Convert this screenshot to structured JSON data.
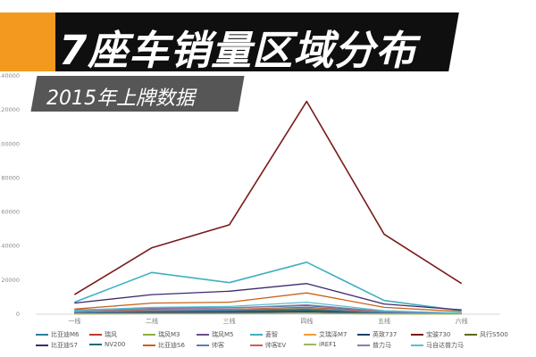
{
  "banner": {
    "title": "7座车销量区域分布",
    "subtitle": "2015年上牌数据"
  },
  "chart_data": {
    "type": "line",
    "categories": [
      "一线",
      "二线",
      "三线",
      "四线",
      "五线",
      "六线"
    ],
    "ylim": [
      0,
      140000
    ],
    "yticks": [
      0,
      20000,
      40000,
      60000,
      80000,
      100000,
      120000,
      140000
    ],
    "xlabel": "",
    "ylabel": "",
    "grid": false,
    "legend": "bottom",
    "series": [
      {
        "name": "比亚迪M6",
        "color": "#2e7d9a",
        "values": [
          2500,
          3500,
          3800,
          5000,
          1500,
          600
        ]
      },
      {
        "name": "瑞风",
        "color": "#c0392b",
        "values": [
          1500,
          2500,
          2800,
          4000,
          1200,
          400
        ]
      },
      {
        "name": "瑞风M3",
        "color": "#8fae3a",
        "values": [
          800,
          1500,
          1800,
          2500,
          800,
          300
        ]
      },
      {
        "name": "瑞风M5",
        "color": "#6b4b8c",
        "values": [
          600,
          1200,
          1400,
          2000,
          700,
          250
        ]
      },
      {
        "name": "菱智",
        "color": "#3fb0c0",
        "values": [
          7000,
          24500,
          18500,
          30500,
          8000,
          2000
        ]
      },
      {
        "name": "艾瑞泽M7",
        "color": "#f39c35",
        "values": [
          1200,
          2200,
          2600,
          3500,
          1100,
          400
        ]
      },
      {
        "name": "英致737",
        "color": "#1f3f6e",
        "values": [
          400,
          800,
          900,
          1300,
          400,
          150
        ]
      },
      {
        "name": "宝骏730",
        "color": "#7a1a1a",
        "values": [
          11500,
          39000,
          52500,
          125000,
          47000,
          18000
        ]
      },
      {
        "name": "风行S500",
        "color": "#5a6a1a",
        "values": [
          900,
          1600,
          1900,
          2600,
          900,
          300
        ]
      },
      {
        "name": "比亚迪S7",
        "color": "#3d2a6e",
        "values": [
          6500,
          11500,
          13500,
          18000,
          6000,
          2500
        ]
      },
      {
        "name": "NV200",
        "color": "#1a6a7a",
        "values": [
          700,
          1400,
          1600,
          2200,
          700,
          250
        ]
      },
      {
        "name": "比亚迪S6",
        "color": "#c8621a",
        "values": [
          3000,
          6500,
          7000,
          12500,
          4000,
          1500
        ]
      },
      {
        "name": "帅客",
        "color": "#5a7fb0",
        "values": [
          1000,
          2000,
          2400,
          3200,
          1000,
          350
        ]
      },
      {
        "name": "帅客EV",
        "color": "#d05a5a",
        "values": [
          200,
          400,
          450,
          600,
          200,
          80
        ]
      },
      {
        "name": "iREF1",
        "color": "#9ab860",
        "values": [
          150,
          300,
          350,
          500,
          150,
          60
        ]
      },
      {
        "name": "普力马",
        "color": "#8f7ab0",
        "values": [
          1800,
          3200,
          3600,
          5500,
          1600,
          600
        ]
      },
      {
        "name": "马自达普力马",
        "color": "#55c0d0",
        "values": [
          2200,
          4000,
          4500,
          7000,
          2000,
          700
        ]
      }
    ]
  }
}
